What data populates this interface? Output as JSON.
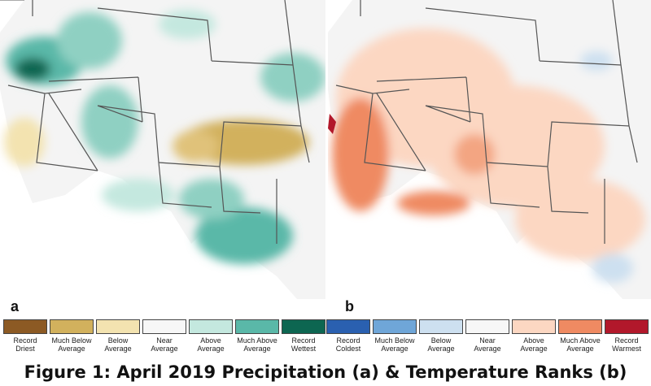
{
  "panels": [
    {
      "label": "a",
      "title": "Precipitation",
      "legend": [
        {
          "text": "Record Driest",
          "color": "#8c5a24"
        },
        {
          "text": "Much Below Average",
          "color": "#d2b15d"
        },
        {
          "text": "Below Average",
          "color": "#f3e3b0"
        },
        {
          "text": "Near Average",
          "color": "#f7f7f7"
        },
        {
          "text": "Above Average",
          "color": "#c4e8df"
        },
        {
          "text": "Much Above Average",
          "color": "#5ab8a8"
        },
        {
          "text": "Record Wettest",
          "color": "#0d6651"
        }
      ]
    },
    {
      "label": "b",
      "title": "Temperature",
      "legend": [
        {
          "text": "Record Coldest",
          "color": "#2a60b0"
        },
        {
          "text": "Much Below Average",
          "color": "#6fa6d8"
        },
        {
          "text": "Below Average",
          "color": "#cde0f0"
        },
        {
          "text": "Near Average",
          "color": "#f7f7f7"
        },
        {
          "text": "Above Average",
          "color": "#fcd7c2"
        },
        {
          "text": "Much Above Average",
          "color": "#ef8a62"
        },
        {
          "text": "Record Warmest",
          "color": "#b2182b"
        }
      ]
    }
  ],
  "caption": "Figure 1: April 2019 Precipitation (a) & Temperature Ranks (b)"
}
